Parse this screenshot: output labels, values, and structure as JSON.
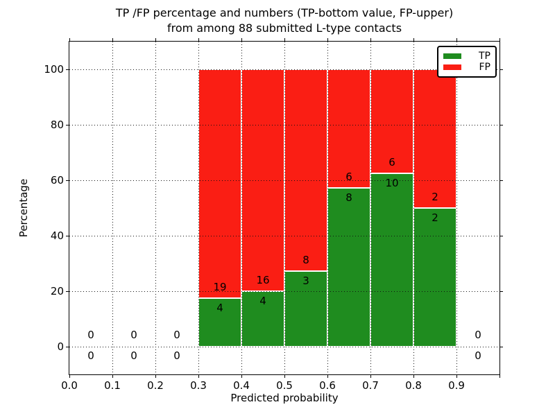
{
  "chart_data": {
    "type": "bar",
    "stacked": true,
    "title_lines": [
      "TP /FP percentage and numbers (TP-bottom value, FP-upper)",
      "from among 88 submitted L-type contacts"
    ],
    "xlabel": "Predicted probability",
    "ylabel": "Percentage",
    "total_submitted_contacts": 88,
    "xlim": [
      0.0,
      1.0
    ],
    "ylim": [
      -10,
      110
    ],
    "grid": "dotted",
    "legend": {
      "position": "upper right",
      "items": [
        {
          "label": "TP",
          "color": "#1f8c1f"
        },
        {
          "label": "FP",
          "color": "#fa1e14"
        }
      ]
    },
    "x_ticks": [
      {
        "v": 0.0,
        "label": "0.0"
      },
      {
        "v": 0.1,
        "label": "0.1"
      },
      {
        "v": 0.2,
        "label": "0.2"
      },
      {
        "v": 0.3,
        "label": "0.3"
      },
      {
        "v": 0.4,
        "label": "0.4"
      },
      {
        "v": 0.5,
        "label": "0.5"
      },
      {
        "v": 0.6,
        "label": "0.6"
      },
      {
        "v": 0.7,
        "label": "0.7"
      },
      {
        "v": 0.8,
        "label": "0.8"
      },
      {
        "v": 0.9,
        "label": "0.9"
      },
      {
        "v": 1.0,
        "label": ""
      }
    ],
    "y_ticks": [
      {
        "v": 0,
        "label": "0"
      },
      {
        "v": 20,
        "label": "20"
      },
      {
        "v": 40,
        "label": "40"
      },
      {
        "v": 60,
        "label": "60"
      },
      {
        "v": 80,
        "label": "80"
      },
      {
        "v": 100,
        "label": "100"
      }
    ],
    "bins": [
      {
        "x0": 0.0,
        "x1": 0.1,
        "tp_count": 0,
        "fp_count": 0,
        "tp_pct": 0,
        "fp_pct": 0
      },
      {
        "x0": 0.1,
        "x1": 0.2,
        "tp_count": 0,
        "fp_count": 0,
        "tp_pct": 0,
        "fp_pct": 0
      },
      {
        "x0": 0.2,
        "x1": 0.3,
        "tp_count": 0,
        "fp_count": 0,
        "tp_pct": 0,
        "fp_pct": 0
      },
      {
        "x0": 0.3,
        "x1": 0.4,
        "tp_count": 4,
        "fp_count": 19,
        "tp_pct": 17.4,
        "fp_pct": 82.6
      },
      {
        "x0": 0.4,
        "x1": 0.5,
        "tp_count": 4,
        "fp_count": 16,
        "tp_pct": 20.0,
        "fp_pct": 80.0
      },
      {
        "x0": 0.5,
        "x1": 0.6,
        "tp_count": 3,
        "fp_count": 8,
        "tp_pct": 27.3,
        "fp_pct": 72.7
      },
      {
        "x0": 0.6,
        "x1": 0.7,
        "tp_count": 8,
        "fp_count": 6,
        "tp_pct": 57.1,
        "fp_pct": 42.9
      },
      {
        "x0": 0.7,
        "x1": 0.8,
        "tp_count": 10,
        "fp_count": 6,
        "tp_pct": 62.5,
        "fp_pct": 37.5
      },
      {
        "x0": 0.8,
        "x1": 0.9,
        "tp_count": 2,
        "fp_count": 2,
        "tp_pct": 50.0,
        "fp_pct": 50.0
      },
      {
        "x0": 0.9,
        "x1": 1.0,
        "tp_count": 0,
        "fp_count": 0,
        "tp_pct": 0,
        "fp_pct": 0
      }
    ]
  }
}
